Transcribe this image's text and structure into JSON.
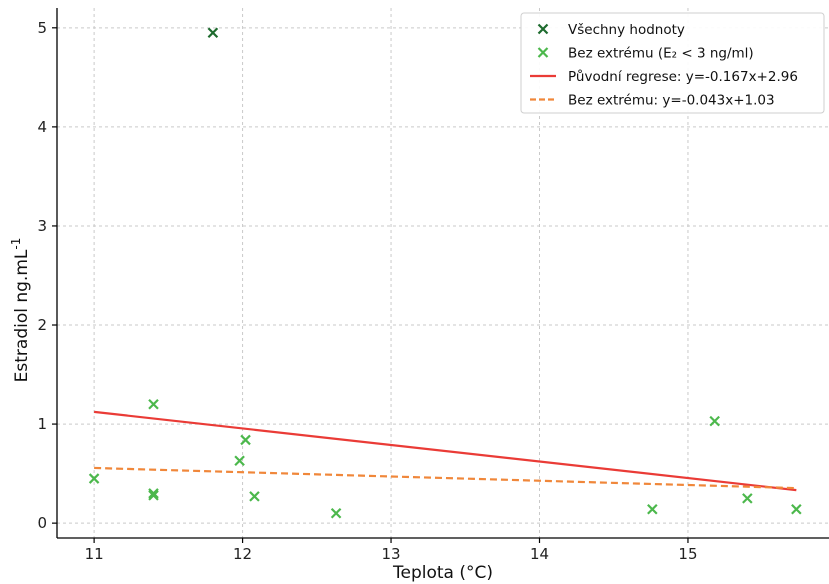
{
  "chart_data": {
    "type": "scatter",
    "title": "",
    "xlabel": "Teplota (°C)",
    "ylabel": "Estradiol ng.mL",
    "ylabel_sup": "-1",
    "xlim": [
      10.75,
      15.95
    ],
    "ylim": [
      -0.15,
      5.2
    ],
    "x_ticks": [
      11,
      12,
      13,
      14,
      15
    ],
    "y_ticks": [
      0,
      1,
      2,
      3,
      4,
      5
    ],
    "grid": true,
    "legend_position": "top-right",
    "series": [
      {
        "name": "Všechny hodnoty",
        "kind": "scatter",
        "marker": "x",
        "color": "#1e6b2e",
        "points": [
          [
            11.8,
            4.95
          ]
        ]
      },
      {
        "name": "Bez extrému (E₂ < 3 ng/ml)",
        "kind": "scatter",
        "marker": "x",
        "color": "#4cb84c",
        "points": [
          [
            11.0,
            0.45
          ],
          [
            11.4,
            1.2
          ],
          [
            11.4,
            0.3
          ],
          [
            11.4,
            0.28
          ],
          [
            11.98,
            0.63
          ],
          [
            12.02,
            0.84
          ],
          [
            12.08,
            0.27
          ],
          [
            12.63,
            0.1
          ],
          [
            14.76,
            0.14
          ],
          [
            15.18,
            1.03
          ],
          [
            15.4,
            0.25
          ],
          [
            15.73,
            0.14
          ]
        ]
      },
      {
        "name": "Původní regrese: y=-0.167x+2.96",
        "kind": "line",
        "style": "solid",
        "color": "#ea3b36",
        "slope": -0.167,
        "intercept": 2.96,
        "x_range": [
          11.0,
          15.73
        ]
      },
      {
        "name": "Bez extrému: y=-0.043x+1.03",
        "kind": "line",
        "style": "dashed",
        "color": "#f0873a",
        "slope": -0.043,
        "intercept": 1.03,
        "x_range": [
          11.0,
          15.73
        ]
      }
    ]
  }
}
